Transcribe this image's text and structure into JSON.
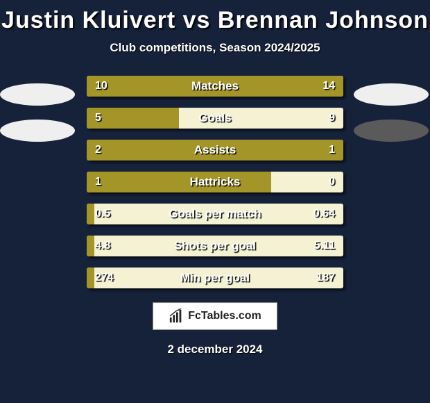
{
  "background_color": "#16213a",
  "title": {
    "text": "Justin Kluivert vs Brennan Johnson",
    "fontsize": 34,
    "color": "#ffffff"
  },
  "subtitle": {
    "text": "Club competitions, Season 2024/2025",
    "fontsize": 17
  },
  "left_ovals": {
    "count": 2,
    "fill": "#efefef"
  },
  "right_ovals": {
    "count": 2,
    "fills": [
      "#efefef",
      "#5a5a5a"
    ]
  },
  "bar_style": {
    "track_color": "#f5f1d3",
    "fill_color": "#a39528",
    "height": 30,
    "gap": 16,
    "label_fontsize": 17,
    "value_fontsize": 16,
    "shadow": "3px 3px 3px rgba(0,0,0,0.6)"
  },
  "bars": [
    {
      "label": "Matches",
      "left_val": "10",
      "right_val": "14",
      "left_pct": 42,
      "right_pct": 58,
      "mode": "both"
    },
    {
      "label": "Goals",
      "left_val": "5",
      "right_val": "9",
      "left_pct": 36,
      "right_pct": 0,
      "mode": "left"
    },
    {
      "label": "Assists",
      "left_val": "2",
      "right_val": "1",
      "left_pct": 67,
      "right_pct": 33,
      "mode": "both"
    },
    {
      "label": "Hattricks",
      "left_val": "1",
      "right_val": "0",
      "left_pct": 72,
      "right_pct": 0,
      "mode": "left"
    },
    {
      "label": "Goals per match",
      "left_val": "0.5",
      "right_val": "0.64",
      "left_pct": 3,
      "right_pct": 0,
      "mode": "left"
    },
    {
      "label": "Shots per goal",
      "left_val": "4.8",
      "right_val": "5.11",
      "left_pct": 3,
      "right_pct": 0,
      "mode": "left"
    },
    {
      "label": "Min per goal",
      "left_val": "274",
      "right_val": "187",
      "left_pct": 3,
      "right_pct": 0,
      "mode": "left"
    }
  ],
  "logo": {
    "text": "FcTables.com",
    "text_color": "#222222",
    "box_bg": "#ffffff",
    "box_border": "#888888"
  },
  "date": {
    "text": "2 december 2024",
    "fontsize": 17
  }
}
